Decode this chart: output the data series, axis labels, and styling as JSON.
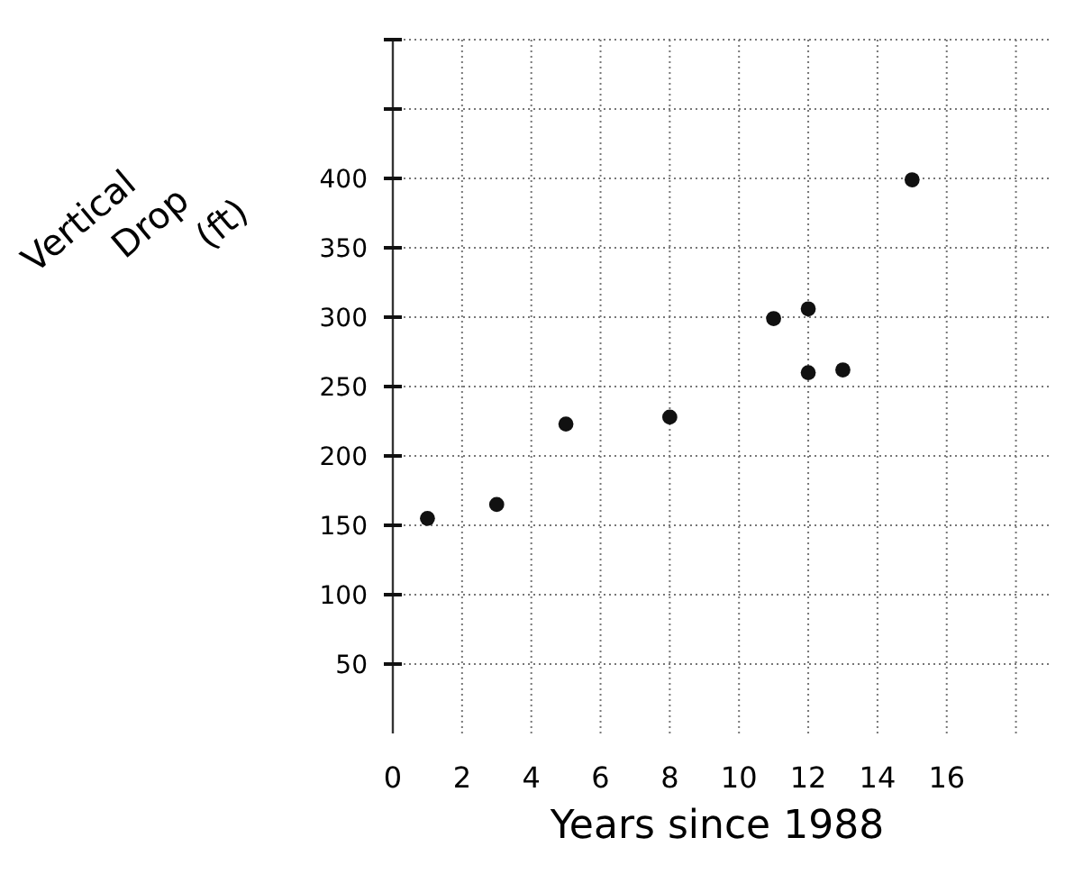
{
  "chart_data": {
    "type": "scatter",
    "xlabel": "Years since 1988",
    "ylabel": "Vertical Drop (ft)",
    "x": [
      1,
      3,
      5,
      8,
      11,
      12,
      12,
      13,
      15
    ],
    "values": [
      155,
      165,
      223,
      228,
      299,
      306,
      260,
      262,
      399
    ],
    "color": "#111111",
    "marker": "circle",
    "xlim": [
      0,
      19
    ],
    "xticks": [
      0,
      2,
      4,
      6,
      8,
      10,
      12,
      14,
      16,
      {
        "value": 18,
        "label": null
      }
    ],
    "ylim": [
      0,
      500
    ],
    "yticks": [
      50,
      100,
      150,
      200,
      250,
      300,
      350,
      400,
      {
        "value": 450,
        "label": null
      },
      {
        "value": 500,
        "label": null
      }
    ],
    "grid": true
  }
}
